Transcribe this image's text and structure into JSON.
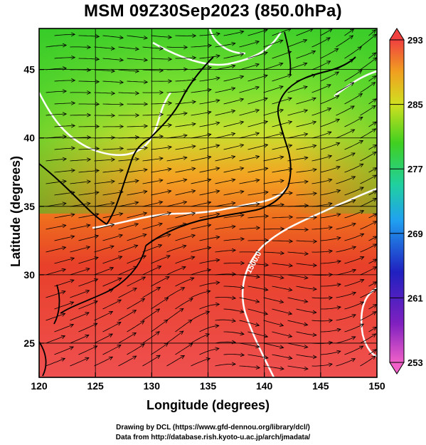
{
  "title": "MSM 09Z30Sep2023 (850.0hPa)",
  "xlabel": "Longitude (degrees)",
  "ylabel": "Latitude  (degrees)",
  "x_ticks": [
    "120",
    "125",
    "130",
    "135",
    "140",
    "145",
    "150"
  ],
  "y_ticks": [
    "25",
    "30",
    "35",
    "40",
    "45"
  ],
  "colorbar_labels": [
    "293",
    "285",
    "277",
    "269",
    "261",
    "253"
  ],
  "contour_label": "1500.0",
  "credits": {
    "line1": "Drawing by DCL (https://www.gfd-dennou.org/library/dcl/)",
    "line2": "Data from http://database.rish.kyoto-u.ac.jp/arch/jmadata/"
  },
  "colors": {
    "warm": "#e8302a",
    "hot": "#f06060",
    "cool": "#3fd02a",
    "transition": "#f0a020",
    "contour": "#ffffff"
  }
}
